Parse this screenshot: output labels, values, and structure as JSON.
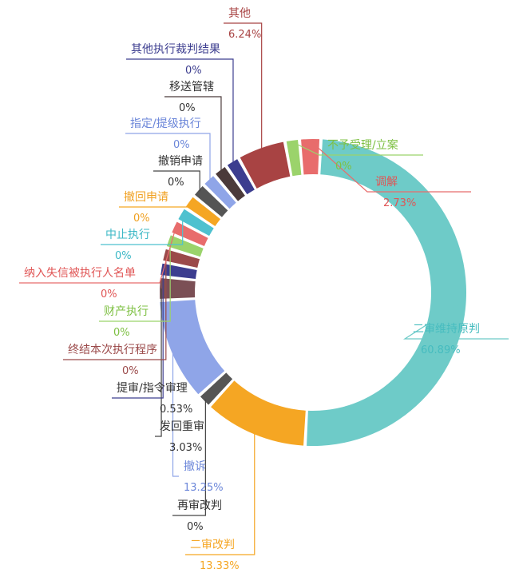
{
  "chart_data": {
    "type": "donut",
    "title": "",
    "slices": [
      {
        "name": "二审维持原判",
        "label": "二审维持原判",
        "value": 60.89,
        "pct": "60.89%",
        "color": "#6ecbc8"
      },
      {
        "name": "二审改判",
        "label": "二审改判",
        "value": 13.33,
        "pct": "13.33%",
        "color": "#f5a623"
      },
      {
        "name": "再审改判",
        "label": "再审改判",
        "value": 0,
        "pct": "0%",
        "color": "#555555"
      },
      {
        "name": "撤诉",
        "label": "撤诉",
        "value": 13.25,
        "pct": "13.25%",
        "color": "#8fa5e8"
      },
      {
        "name": "发回重审",
        "label": "发回重审",
        "value": 3.03,
        "pct": "3.03%",
        "color": "#7b4f55"
      },
      {
        "name": "提审/指令审理",
        "label": "提审/指令审理",
        "value": 0.53,
        "pct": "0.53%",
        "color": "#3c3d8f"
      },
      {
        "name": "终结本次执行程序",
        "label": "终结本次执行程序",
        "value": 0,
        "pct": "0%",
        "color": "#9b4a4a"
      },
      {
        "name": "财产执行",
        "label": "财产执行",
        "value": 0,
        "pct": "0%",
        "color": "#9bd36b"
      },
      {
        "name": "纳入失信被执行人名单",
        "label": "纳入失信被执行人名单",
        "value": 0,
        "pct": "0%",
        "color": "#e86c6c"
      },
      {
        "name": "中止执行",
        "label": "中止执行",
        "value": 0,
        "pct": "0%",
        "color": "#4ec1cf"
      },
      {
        "name": "撤回申请",
        "label": "撤回申请",
        "value": 0,
        "pct": "0%",
        "color": "#f5a623"
      },
      {
        "name": "撤销申请",
        "label": "撤销申请",
        "value": 0,
        "pct": "0%",
        "color": "#555555"
      },
      {
        "name": "指定/提级执行",
        "label": "指定/提级执行",
        "value": 0,
        "pct": "0%",
        "color": "#8fa5e8"
      },
      {
        "name": "移送管辖",
        "label": "移送管辖",
        "value": 0,
        "pct": "0%",
        "color": "#4b3a3a"
      },
      {
        "name": "其他执行裁判结果",
        "label": "其他执行裁判结果",
        "value": 0,
        "pct": "0%",
        "color": "#3c3d8f"
      },
      {
        "name": "其他",
        "label": "其他",
        "value": 6.24,
        "pct": "6.24%",
        "color": "#a84343"
      },
      {
        "name": "不予受理/立案",
        "label": "不予受理/立案",
        "value": 0,
        "pct": "0%",
        "color": "#9bd36b"
      },
      {
        "name": "调解",
        "label": "调解",
        "value": 2.73,
        "pct": "2.73%",
        "color": "#e86c6c"
      }
    ]
  }
}
